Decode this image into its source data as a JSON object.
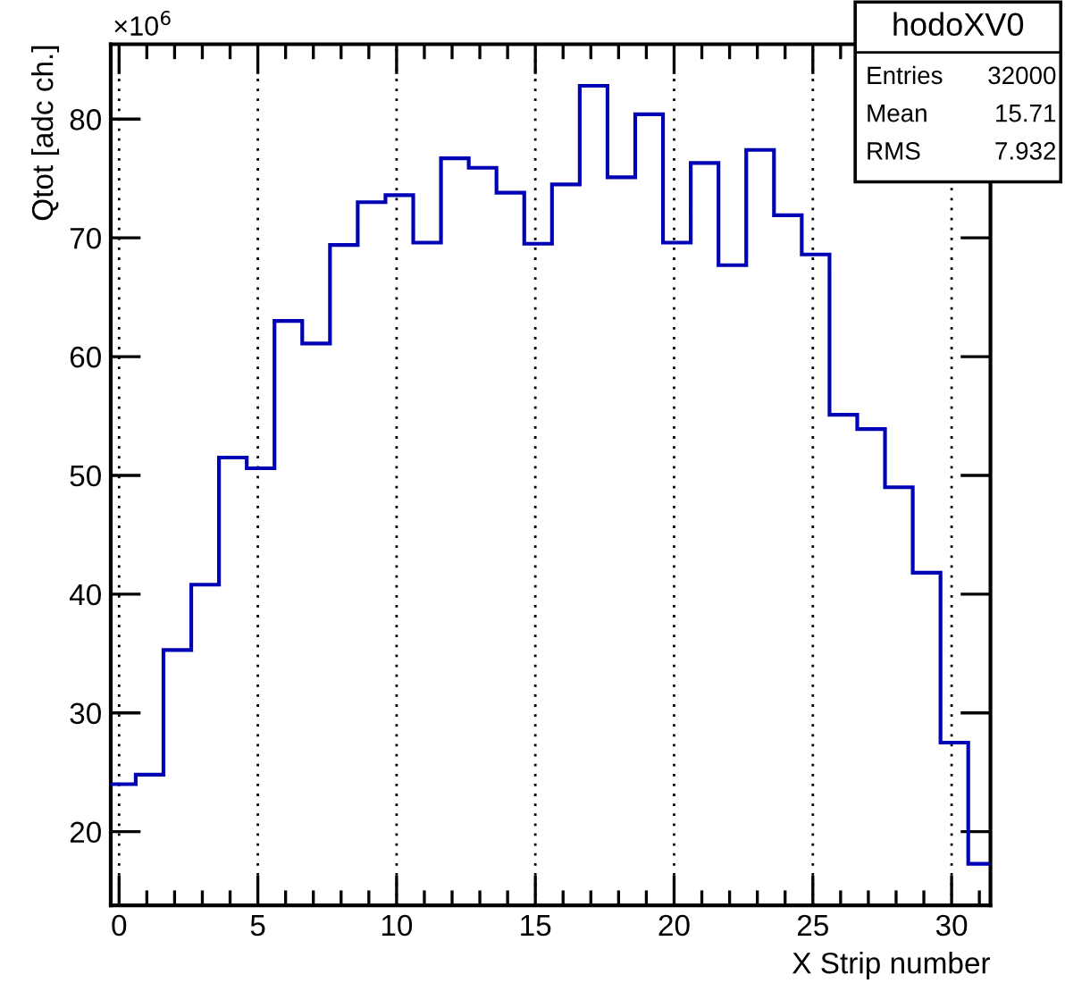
{
  "chart_data": {
    "type": "histogram",
    "xlabel": "X Strip number",
    "ylabel": "Qtot [adc ch.]",
    "bins": [
      -0.3,
      0.6,
      1.6,
      2.6,
      3.6,
      4.6,
      5.6,
      6.6,
      7.6,
      8.6,
      9.6,
      10.6,
      11.6,
      12.6,
      13.6,
      14.6,
      15.6,
      16.6,
      17.6,
      18.6,
      19.6,
      20.6,
      21.6,
      22.6,
      23.6,
      24.6,
      25.6,
      26.6,
      27.6,
      28.6,
      29.6,
      30.6,
      31.4
    ],
    "values": [
      24.0,
      24.8,
      35.3,
      40.8,
      51.5,
      50.6,
      63.0,
      61.1,
      69.4,
      73.0,
      73.6,
      69.6,
      76.7,
      75.9,
      73.8,
      69.5,
      74.5,
      82.8,
      75.1,
      80.4,
      69.6,
      76.3,
      67.7,
      77.4,
      71.9,
      68.6,
      55.1,
      53.9,
      49.0,
      41.8,
      27.5,
      17.3
    ],
    "color": "#0000b4",
    "xlim": [
      -0.3,
      31.4
    ],
    "xticks": [
      0,
      5,
      10,
      15,
      20,
      25,
      30
    ],
    "ylim": [
      13.8,
      86.3
    ],
    "yticks": [
      20,
      30,
      40,
      50,
      60,
      70,
      80
    ],
    "grid": "x",
    "annotations": [
      "×10$^{6}$",
      "hodoXV0",
      "Entries",
      "32000",
      "Mean",
      "15.71",
      "RMS",
      "7.932"
    ]
  }
}
